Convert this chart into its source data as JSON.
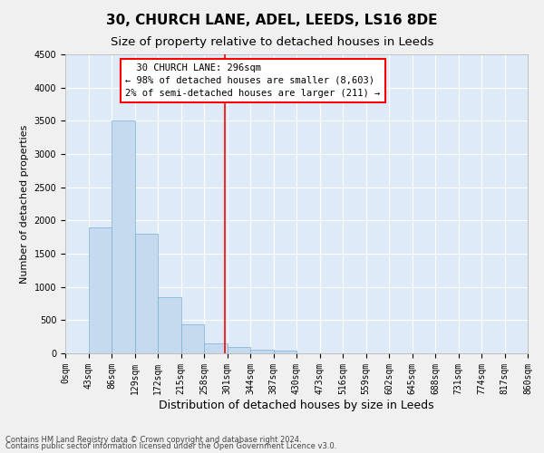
{
  "title": "30, CHURCH LANE, ADEL, LEEDS, LS16 8DE",
  "subtitle": "Size of property relative to detached houses in Leeds",
  "xlabel": "Distribution of detached houses by size in Leeds",
  "ylabel": "Number of detached properties",
  "bar_labels": [
    "0sqm",
    "43sqm",
    "86sqm",
    "129sqm",
    "172sqm",
    "215sqm",
    "258sqm",
    "301sqm",
    "344sqm",
    "387sqm",
    "430sqm",
    "473sqm",
    "516sqm",
    "559sqm",
    "602sqm",
    "645sqm",
    "688sqm",
    "731sqm",
    "774sqm",
    "817sqm",
    "860sqm"
  ],
  "bar_values": [
    0,
    1900,
    3500,
    1800,
    850,
    430,
    150,
    90,
    60,
    35,
    0,
    0,
    0,
    0,
    0,
    0,
    0,
    0,
    0,
    0
  ],
  "bar_color": "#c5d9ef",
  "bar_edge_color": "#7aafd4",
  "background_color": "#deeaf8",
  "grid_color": "#ffffff",
  "ylim": [
    0,
    4500
  ],
  "yticks": [
    0,
    500,
    1000,
    1500,
    2000,
    2500,
    3000,
    3500,
    4000,
    4500
  ],
  "annotation_text": "  30 CHURCH LANE: 296sqm  \n← 98% of detached houses are smaller (8,603)\n2% of semi-detached houses are larger (211) →",
  "footer_line1": "Contains HM Land Registry data © Crown copyright and database right 2024.",
  "footer_line2": "Contains public sector information licensed under the Open Government Licence v3.0.",
  "title_fontsize": 11,
  "subtitle_fontsize": 9.5,
  "tick_fontsize": 7,
  "ylabel_fontsize": 8,
  "xlabel_fontsize": 9,
  "annotation_fontsize": 7.5,
  "footer_fontsize": 6
}
